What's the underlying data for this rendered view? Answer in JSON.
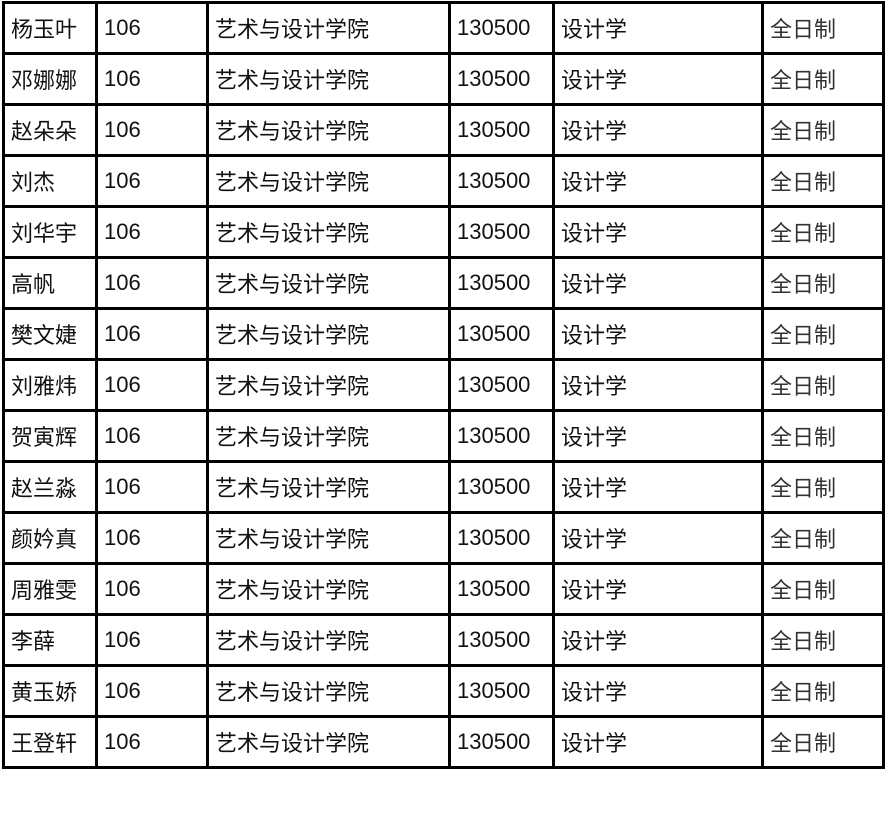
{
  "rows": [
    {
      "name": "杨玉叶",
      "code": "106",
      "college": "艺术与设计学院",
      "major_code": "130500",
      "major": "设计学",
      "mode": "全日制"
    },
    {
      "name": "邓娜娜",
      "code": "106",
      "college": "艺术与设计学院",
      "major_code": "130500",
      "major": "设计学",
      "mode": "全日制"
    },
    {
      "name": "赵朵朵",
      "code": "106",
      "college": "艺术与设计学院",
      "major_code": "130500",
      "major": "设计学",
      "mode": "全日制"
    },
    {
      "name": "刘杰",
      "code": "106",
      "college": "艺术与设计学院",
      "major_code": "130500",
      "major": "设计学",
      "mode": "全日制"
    },
    {
      "name": "刘华宇",
      "code": "106",
      "college": "艺术与设计学院",
      "major_code": "130500",
      "major": "设计学",
      "mode": "全日制"
    },
    {
      "name": "高帆",
      "code": "106",
      "college": "艺术与设计学院",
      "major_code": "130500",
      "major": "设计学",
      "mode": "全日制"
    },
    {
      "name": "樊文婕",
      "code": "106",
      "college": "艺术与设计学院",
      "major_code": "130500",
      "major": "设计学",
      "mode": "全日制"
    },
    {
      "name": "刘雅炜",
      "code": "106",
      "college": "艺术与设计学院",
      "major_code": "130500",
      "major": "设计学",
      "mode": "全日制"
    },
    {
      "name": "贺寅辉",
      "code": "106",
      "college": "艺术与设计学院",
      "major_code": "130500",
      "major": "设计学",
      "mode": "全日制"
    },
    {
      "name": "赵兰淼",
      "code": "106",
      "college": "艺术与设计学院",
      "major_code": "130500",
      "major": "设计学",
      "mode": "全日制"
    },
    {
      "name": "颜妗真",
      "code": "106",
      "college": "艺术与设计学院",
      "major_code": "130500",
      "major": "设计学",
      "mode": "全日制"
    },
    {
      "name": "周雅雯",
      "code": "106",
      "college": "艺术与设计学院",
      "major_code": "130500",
      "major": "设计学",
      "mode": "全日制"
    },
    {
      "name": "李薛",
      "code": "106",
      "college": "艺术与设计学院",
      "major_code": "130500",
      "major": "设计学",
      "mode": "全日制"
    },
    {
      "name": "黄玉娇",
      "code": "106",
      "college": "艺术与设计学院",
      "major_code": "130500",
      "major": "设计学",
      "mode": "全日制"
    },
    {
      "name": "王登轩",
      "code": "106",
      "college": "艺术与设计学院",
      "major_code": "130500",
      "major": "设计学",
      "mode": "全日制"
    }
  ]
}
